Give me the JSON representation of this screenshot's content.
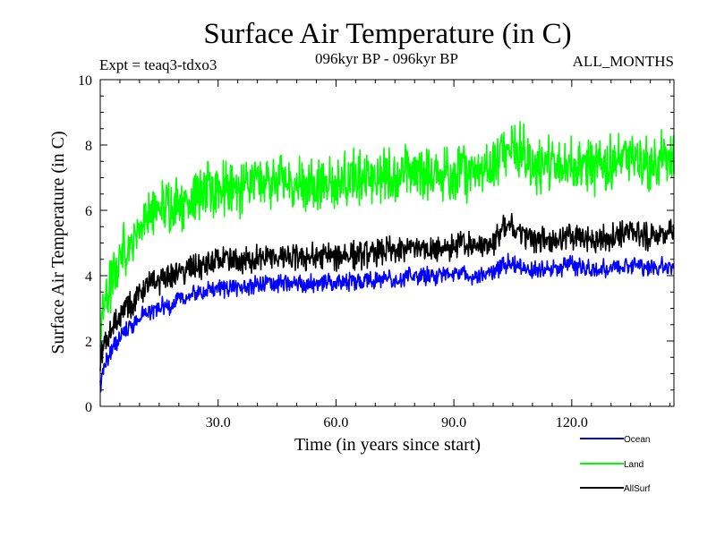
{
  "chart_data": {
    "type": "line",
    "title": "Surface Air Temperature (in C)",
    "subtitle_left": "Expt = teaq3-tdxo3",
    "subtitle_center": "096kyr BP - 096kyr BP",
    "subtitle_right": "ALL_MONTHS",
    "xlabel": "Time (in years since start)",
    "ylabel": "Surface Air Temperature (in C)",
    "xlim": [
      0,
      146
    ],
    "ylim": [
      0,
      10
    ],
    "x_ticks": [
      30,
      60,
      90,
      120
    ],
    "x_tick_labels": [
      "30.0",
      "60.0",
      "90.0",
      "120.0"
    ],
    "y_ticks": [
      0,
      2,
      4,
      6,
      8,
      10
    ],
    "y_tick_labels": [
      "0",
      "2",
      "4",
      "6",
      "8",
      "10"
    ],
    "x": [
      0,
      1,
      2,
      3,
      4,
      5,
      6,
      8,
      10,
      12,
      15,
      18,
      20,
      23,
      26,
      30,
      35,
      40,
      45,
      50,
      55,
      60,
      65,
      70,
      75,
      80,
      85,
      90,
      95,
      100,
      104,
      110,
      115,
      120,
      125,
      130,
      135,
      140,
      146
    ],
    "series": [
      {
        "name": "Ocean",
        "color": "#0000ff",
        "values": [
          0.6,
          1.2,
          1.5,
          1.7,
          1.9,
          2.1,
          2.3,
          2.5,
          2.7,
          2.85,
          3.0,
          3.1,
          3.25,
          3.4,
          3.5,
          3.6,
          3.65,
          3.7,
          3.75,
          3.8,
          3.75,
          3.8,
          3.85,
          3.9,
          3.9,
          3.95,
          4.0,
          4.05,
          4.0,
          4.1,
          4.45,
          4.15,
          4.2,
          4.35,
          4.15,
          4.25,
          4.35,
          4.25,
          4.3
        ]
      },
      {
        "name": "Land",
        "color": "#00ff00",
        "values": [
          2.2,
          3.0,
          3.5,
          3.8,
          4.2,
          4.5,
          4.8,
          5.1,
          5.5,
          5.8,
          6.0,
          6.2,
          6.3,
          6.4,
          6.5,
          6.6,
          6.7,
          6.8,
          6.85,
          6.9,
          6.75,
          6.9,
          6.95,
          7.0,
          7.05,
          7.1,
          7.1,
          7.15,
          7.2,
          7.3,
          8.2,
          7.35,
          7.4,
          7.45,
          7.3,
          7.4,
          7.6,
          7.45,
          7.5
        ]
      },
      {
        "name": "AllSurf",
        "color": "#000000",
        "values": [
          1.3,
          1.8,
          2.1,
          2.3,
          2.6,
          2.8,
          3.0,
          3.2,
          3.45,
          3.65,
          3.85,
          4.0,
          4.1,
          4.2,
          4.3,
          4.4,
          4.45,
          4.5,
          4.55,
          4.6,
          4.55,
          4.6,
          4.65,
          4.7,
          4.75,
          4.8,
          4.85,
          4.9,
          4.95,
          5.05,
          5.6,
          5.1,
          5.15,
          5.2,
          5.05,
          5.2,
          5.35,
          5.2,
          5.3
        ]
      }
    ],
    "legend": [
      {
        "name": "Ocean",
        "color": "#0000ff"
      },
      {
        "name": "Land",
        "color": "#00ff00"
      },
      {
        "name": "AllSurf",
        "color": "#000000"
      }
    ]
  }
}
